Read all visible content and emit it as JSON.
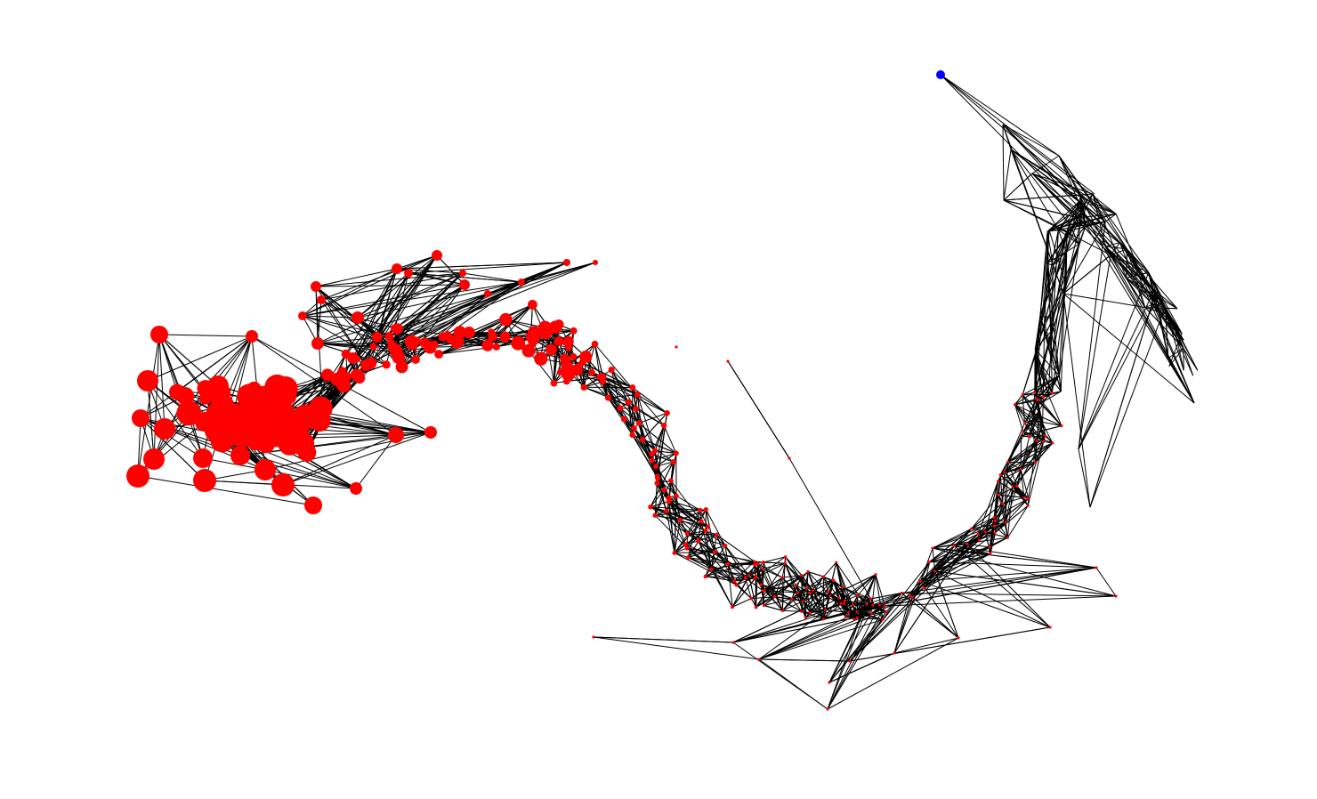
{
  "figure": {
    "type": "network-graph",
    "background": "#ffffff",
    "edge_color": "#000000",
    "node_color": "#ff0000",
    "highlight_node_color": "#0000ff",
    "axes_visible": false,
    "labels_visible": false,
    "legend": "none"
  }
}
